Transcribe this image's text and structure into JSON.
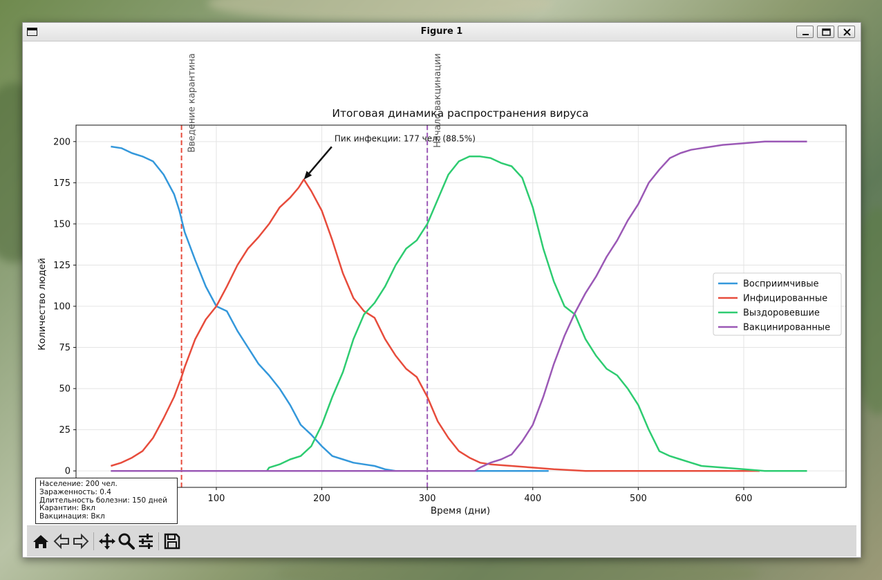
{
  "window": {
    "title": "Figure 1"
  },
  "chart_data": {
    "type": "line",
    "title": "Итоговая динамика распространения вируса",
    "xlabel": "Время (дни)",
    "ylabel": "Количество людей",
    "xlim": [
      -33,
      697
    ],
    "ylim": [
      -10,
      210
    ],
    "xticks": [
      100,
      200,
      300,
      400,
      500,
      600
    ],
    "yticks": [
      0,
      25,
      50,
      75,
      100,
      125,
      150,
      175,
      200
    ],
    "grid": true,
    "legend_position": "center-right",
    "series": [
      {
        "name": "Восприимчивые",
        "color": "#3498db",
        "x": [
          0,
          10,
          20,
          30,
          40,
          50,
          60,
          65,
          70,
          80,
          90,
          100,
          110,
          120,
          130,
          140,
          150,
          160,
          170,
          180,
          190,
          200,
          210,
          220,
          230,
          240,
          250,
          260,
          270,
          300,
          350,
          400,
          415
        ],
        "y": [
          197,
          196,
          193,
          191,
          188,
          180,
          168,
          158,
          145,
          128,
          112,
          100,
          97,
          85,
          75,
          65,
          58,
          50,
          40,
          28,
          22,
          15,
          9,
          7,
          5,
          4,
          3,
          1,
          0,
          0,
          0,
          0,
          0
        ]
      },
      {
        "name": "Инфицированные",
        "color": "#e74c3c",
        "x": [
          0,
          10,
          20,
          30,
          40,
          50,
          60,
          67,
          70,
          80,
          90,
          100,
          110,
          120,
          130,
          140,
          150,
          160,
          170,
          178,
          183,
          190,
          200,
          210,
          220,
          230,
          240,
          250,
          260,
          270,
          280,
          290,
          300,
          310,
          320,
          330,
          340,
          350,
          360,
          380,
          400,
          420,
          450,
          500,
          550,
          600,
          615
        ],
        "y": [
          3,
          5,
          8,
          12,
          20,
          32,
          45,
          57,
          63,
          80,
          92,
          100,
          112,
          125,
          135,
          142,
          150,
          160,
          166,
          172,
          177,
          170,
          158,
          140,
          120,
          105,
          97,
          93,
          80,
          70,
          62,
          57,
          45,
          30,
          20,
          12,
          8,
          5,
          4,
          3,
          2,
          1,
          0,
          0,
          0,
          0,
          0
        ]
      },
      {
        "name": "Выздоровевшие",
        "color": "#2ecc71",
        "x": [
          0,
          100,
          148,
          150,
          160,
          170,
          180,
          190,
          200,
          210,
          220,
          230,
          240,
          250,
          260,
          270,
          280,
          290,
          300,
          310,
          320,
          330,
          340,
          350,
          360,
          370,
          380,
          390,
          400,
          410,
          420,
          430,
          440,
          450,
          460,
          470,
          480,
          490,
          500,
          510,
          520,
          530,
          540,
          550,
          560,
          580,
          600,
          620,
          660
        ],
        "y": [
          0,
          0,
          0,
          2,
          4,
          7,
          9,
          15,
          28,
          45,
          60,
          80,
          95,
          102,
          112,
          125,
          135,
          140,
          150,
          165,
          180,
          188,
          191,
          191,
          190,
          187,
          185,
          178,
          160,
          135,
          115,
          100,
          95,
          80,
          70,
          62,
          58,
          50,
          40,
          25,
          12,
          9,
          7,
          5,
          3,
          2,
          1,
          0,
          0
        ]
      },
      {
        "name": "Вакцинированные",
        "color": "#9b59b6",
        "x": [
          0,
          300,
          345,
          350,
          360,
          370,
          380,
          390,
          400,
          410,
          420,
          430,
          440,
          450,
          460,
          470,
          480,
          490,
          500,
          510,
          520,
          530,
          540,
          550,
          560,
          570,
          580,
          600,
          620,
          640,
          660
        ],
        "y": [
          0,
          0,
          0,
          2,
          5,
          7,
          10,
          18,
          28,
          45,
          65,
          82,
          96,
          108,
          118,
          130,
          140,
          152,
          162,
          175,
          183,
          190,
          193,
          195,
          196,
          197,
          198,
          199,
          200,
          200,
          200
        ]
      }
    ],
    "vlines": [
      {
        "x": 67,
        "color": "#e74c3c",
        "label": "Введение карантина"
      },
      {
        "x": 300,
        "color": "#9b59b6",
        "label": "Начало вакцинации"
      }
    ],
    "annotation": {
      "text": "Пик инфекции: 177 чел. (88.5%)",
      "x": 183,
      "y": 177,
      "text_x": 212,
      "text_y": 196
    },
    "info_box": [
      "Население: 200 чел.",
      "Зараженность: 0.4",
      "Длительность болезни: 150 дней",
      "Карантин: Вкл",
      "Вакцинация: Вкл"
    ]
  },
  "toolbar": {
    "buttons": [
      {
        "name": "home",
        "icon": "home-icon"
      },
      {
        "name": "back",
        "icon": "back-arrow-icon"
      },
      {
        "name": "forward",
        "icon": "forward-arrow-icon"
      },
      {
        "name": "pan",
        "icon": "move-icon"
      },
      {
        "name": "zoom",
        "icon": "zoom-icon"
      },
      {
        "name": "configure",
        "icon": "sliders-icon"
      },
      {
        "name": "save",
        "icon": "floppy-disk-icon"
      }
    ]
  }
}
